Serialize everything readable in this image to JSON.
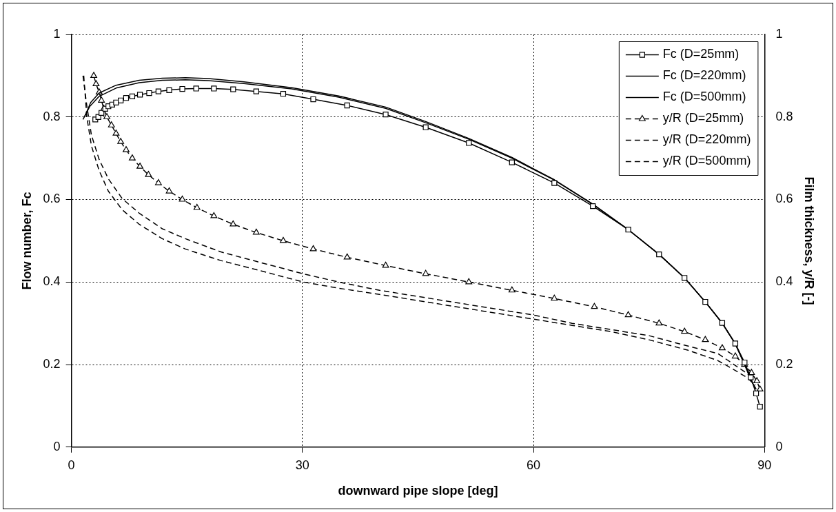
{
  "chart_data": {
    "type": "line",
    "xlabel": "downward pipe slope [deg]",
    "ylabel": "Flow number, Fc",
    "y2label": "Film thickness, y/R [-]",
    "xlim": [
      0,
      90
    ],
    "xticks": [
      0,
      30,
      60,
      90
    ],
    "ylim": [
      0,
      1
    ],
    "yticks": [
      0,
      0.2,
      0.4,
      0.6,
      0.8,
      1
    ],
    "y2lim": [
      0,
      1
    ],
    "y2ticks": [
      0,
      0.2,
      0.4,
      0.6,
      0.8,
      1
    ],
    "grid": true,
    "legend": "top right",
    "series": [
      {
        "name": "Fc (D=25mm)",
        "color": "#000000",
        "marker": "square",
        "line_style": "solid",
        "x": [
          3.1,
          3.5,
          3.9,
          4.4,
          4.8,
          5.3,
          5.8,
          6.4,
          7.1,
          7.9,
          8.9,
          10.1,
          11.3,
          12.7,
          14.4,
          16.2,
          18.5,
          21.0,
          24.0,
          27.5,
          31.4,
          35.8,
          40.8,
          46.0,
          51.6,
          57.2,
          62.7,
          67.7,
          72.3,
          76.3,
          79.6,
          82.3,
          84.5,
          86.2,
          87.4,
          88.2,
          88.9,
          89.4
        ],
        "values": [
          0.794,
          0.8,
          0.81,
          0.82,
          0.826,
          0.83,
          0.835,
          0.84,
          0.846,
          0.85,
          0.854,
          0.858,
          0.862,
          0.865,
          0.868,
          0.869,
          0.869,
          0.867,
          0.862,
          0.856,
          0.843,
          0.828,
          0.806,
          0.775,
          0.737,
          0.69,
          0.64,
          0.584,
          0.527,
          0.467,
          0.41,
          0.352,
          0.301,
          0.251,
          0.205,
          0.169,
          0.13,
          0.098
        ]
      },
      {
        "name": "Fc (D=220mm)",
        "color": "#000000",
        "marker": "none",
        "line_style": "solid",
        "x": [
          1.5,
          2.4,
          3.6,
          5.8,
          8.8,
          11.8,
          14.8,
          17.8,
          22.4,
          28.6,
          34.7,
          40.8,
          46.0,
          51.6,
          57.2,
          62.7,
          67.7,
          72.3,
          76.3,
          79.6,
          82.3,
          84.5,
          86.2,
          87.4,
          88.3,
          88.9
        ],
        "values": [
          0.794,
          0.826,
          0.85,
          0.87,
          0.883,
          0.889,
          0.89,
          0.888,
          0.881,
          0.868,
          0.848,
          0.821,
          0.786,
          0.746,
          0.7,
          0.647,
          0.588,
          0.527,
          0.467,
          0.41,
          0.352,
          0.3,
          0.25,
          0.2,
          0.16,
          0.14
        ]
      },
      {
        "name": "Fc (D=500mm)",
        "color": "#000000",
        "marker": "none",
        "line_style": "solid",
        "x": [
          1.7,
          2.5,
          3.6,
          5.8,
          8.8,
          11.8,
          14.8,
          17.8,
          22.4,
          28.6,
          34.7,
          40.8,
          46.0,
          51.6,
          57.2,
          62.7,
          67.7,
          72.3,
          76.3,
          79.6,
          82.3,
          84.5,
          86.2,
          87.4,
          88.3,
          88.9
        ],
        "values": [
          0.8,
          0.835,
          0.858,
          0.877,
          0.889,
          0.894,
          0.895,
          0.893,
          0.885,
          0.871,
          0.851,
          0.824,
          0.789,
          0.748,
          0.702,
          0.648,
          0.589,
          0.527,
          0.467,
          0.41,
          0.352,
          0.3,
          0.25,
          0.2,
          0.16,
          0.14
        ]
      },
      {
        "name": "y/R (D=25mm)",
        "color": "#000000",
        "marker": "triangle",
        "line_style": "dashed",
        "axis": "y2",
        "x": [
          2.9,
          3.2,
          3.6,
          3.9,
          4.2,
          4.6,
          5.2,
          5.8,
          6.4,
          7.1,
          7.9,
          8.9,
          10.0,
          11.3,
          12.7,
          14.4,
          16.3,
          18.5,
          21.0,
          24.0,
          27.5,
          31.4,
          35.8,
          40.8,
          46.0,
          51.6,
          57.2,
          62.7,
          67.9,
          72.3,
          76.3,
          79.6,
          82.3,
          84.5,
          86.2,
          87.4,
          88.3,
          89.0,
          89.4
        ],
        "values": [
          0.9,
          0.88,
          0.86,
          0.84,
          0.82,
          0.8,
          0.78,
          0.76,
          0.74,
          0.72,
          0.7,
          0.68,
          0.66,
          0.64,
          0.62,
          0.6,
          0.58,
          0.56,
          0.54,
          0.52,
          0.5,
          0.48,
          0.46,
          0.44,
          0.42,
          0.4,
          0.38,
          0.36,
          0.34,
          0.32,
          0.3,
          0.28,
          0.26,
          0.24,
          0.22,
          0.2,
          0.18,
          0.16,
          0.14
        ]
      },
      {
        "name": "y/R (D=220mm)",
        "color": "#000000",
        "marker": "none",
        "line_style": "dashed",
        "axis": "y2",
        "x": [
          1.5,
          2.0,
          2.6,
          3.6,
          4.8,
          6.6,
          8.8,
          11.8,
          14.8,
          19.4,
          24.0,
          30.1,
          34.7,
          40.0,
          45.0,
          50.0,
          55.0,
          60.0,
          65.0,
          70.0,
          75.0,
          80.0,
          83.9,
          85.8,
          87.6,
          88.8
        ],
        "values": [
          0.9,
          0.827,
          0.756,
          0.697,
          0.65,
          0.602,
          0.567,
          0.529,
          0.505,
          0.473,
          0.45,
          0.42,
          0.4,
          0.38,
          0.365,
          0.35,
          0.335,
          0.32,
          0.3,
          0.285,
          0.27,
          0.245,
          0.227,
          0.203,
          0.18,
          0.162
        ]
      },
      {
        "name": "y/R (D=500mm)",
        "color": "#000000",
        "marker": "none",
        "line_style": "dashed",
        "axis": "y2",
        "x": [
          1.6,
          2.0,
          2.6,
          3.6,
          4.8,
          6.6,
          8.8,
          11.8,
          14.8,
          19.4,
          24.0,
          30.1,
          34.7,
          40.0,
          45.0,
          50.0,
          55.0,
          60.0,
          65.0,
          70.0,
          75.0,
          80.0,
          83.9,
          85.8,
          87.6,
          88.8
        ],
        "values": [
          0.9,
          0.8,
          0.73,
          0.67,
          0.62,
          0.575,
          0.54,
          0.505,
          0.48,
          0.452,
          0.43,
          0.4,
          0.385,
          0.37,
          0.355,
          0.34,
          0.325,
          0.31,
          0.295,
          0.28,
          0.26,
          0.235,
          0.21,
          0.19,
          0.17,
          0.15
        ]
      }
    ]
  }
}
